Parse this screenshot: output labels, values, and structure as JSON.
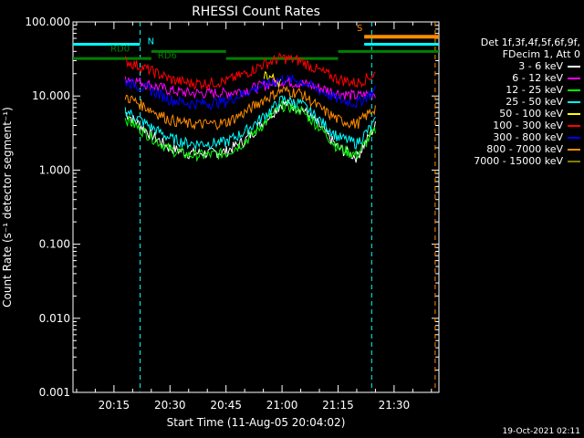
{
  "chart_data": {
    "type": "line",
    "title": "RHESSI Count Rates",
    "xlabel": "Start Time (11-Aug-05 20:04:02)",
    "ylabel": "Count Rate (s⁻¹ detector segment⁻¹)",
    "y_scale": "log",
    "ylim": [
      0.001,
      100
    ],
    "xlim": [
      "20:04:02",
      "21:42"
    ],
    "x_ticks": [
      "20:15",
      "20:30",
      "20:45",
      "21:00",
      "21:15",
      "21:30"
    ],
    "y_ticks": [
      "0.001",
      "0.010",
      "0.100",
      "1.000",
      "10.000",
      "100.000"
    ],
    "grid": false,
    "legend_position": "right",
    "x": [
      "20:18",
      "20:25",
      "20:30",
      "20:35",
      "20:40",
      "20:45",
      "20:50",
      "20:55",
      "21:00",
      "21:05",
      "21:10",
      "21:15",
      "21:20",
      "21:25"
    ],
    "series": [
      {
        "name": "3 - 6 keV",
        "color": "#ffffff",
        "values": [
          6.0,
          3.0,
          2.0,
          1.7,
          1.7,
          1.8,
          2.5,
          4.5,
          8.0,
          7.0,
          4.0,
          2.0,
          1.5,
          4.0
        ]
      },
      {
        "name": "6 - 12 keV",
        "color": "#ff00ff",
        "values": [
          18,
          14,
          12,
          11,
          11,
          11,
          12,
          14,
          16,
          15,
          13,
          11,
          10,
          11
        ]
      },
      {
        "name": "12 - 25 keV",
        "color": "#00ff00",
        "values": [
          5.0,
          2.8,
          1.9,
          1.6,
          1.6,
          1.7,
          2.4,
          4.2,
          7.5,
          6.5,
          3.8,
          2.0,
          1.6,
          3.5
        ]
      },
      {
        "name": "25 - 50 keV",
        "color": "#00ffff",
        "values": [
          6.5,
          3.8,
          2.7,
          2.3,
          2.3,
          2.4,
          3.3,
          5.3,
          9.0,
          8.0,
          4.8,
          2.8,
          2.3,
          4.5
        ]
      },
      {
        "name": "50 - 100 keV",
        "color": "#ffff00",
        "values": [
          null,
          null,
          null,
          null,
          null,
          null,
          null,
          20,
          15,
          null,
          null,
          null,
          null,
          null
        ]
      },
      {
        "name": "100 - 300 keV",
        "color": "#ff0000",
        "values": [
          30,
          22,
          17,
          15,
          15,
          16,
          20,
          27,
          33,
          30,
          22,
          17,
          15,
          20
        ]
      },
      {
        "name": "300 - 800 keV",
        "color": "#0000ff",
        "values": [
          16,
          12,
          9.0,
          8.0,
          8.0,
          8.5,
          11,
          14,
          17,
          16,
          12,
          9.0,
          8.0,
          12
        ]
      },
      {
        "name": "800 - 7000 keV",
        "color": "#ff8c00",
        "values": [
          10,
          6.5,
          4.8,
          4.2,
          4.2,
          4.4,
          6.0,
          9.0,
          12,
          11,
          7.0,
          4.8,
          4.2,
          7.0
        ]
      },
      {
        "name": "7000 - 15000 keV",
        "color": "#808000",
        "values": [
          null,
          null,
          null,
          null,
          null,
          null,
          null,
          null,
          null,
          null,
          null,
          null,
          null,
          null
        ]
      }
    ],
    "legend_header": [
      "Det 1f,3f,4f,5f,6f,9f,",
      "FDecim 1, Att 0"
    ],
    "annotations": {
      "markers": [
        {
          "label": "N",
          "color": "#00ffff",
          "x": "20:23"
        },
        {
          "label": "RD0",
          "color": "#008000",
          "x": "20:18"
        },
        {
          "label": "RD6",
          "color": "#008000",
          "x": "20:26"
        },
        {
          "label": "S",
          "color": "#ff8c00",
          "x": "21:21"
        }
      ],
      "night_bars": [
        {
          "color": "#00ffff",
          "from": "20:04:02",
          "to": "20:22",
          "level": 50
        },
        {
          "color": "#00ffff",
          "from": "21:22",
          "to": "21:42",
          "level": 50
        }
      ],
      "decimation_bars": [
        {
          "color": "#008000",
          "from": "20:04:02",
          "to": "20:25",
          "level": 32
        },
        {
          "color": "#008000",
          "from": "20:25",
          "to": "20:45",
          "level": 40
        },
        {
          "color": "#008000",
          "from": "20:45",
          "to": "21:15",
          "level": 32
        },
        {
          "color": "#008000",
          "from": "21:15",
          "to": "21:42",
          "level": 40
        }
      ],
      "saa_bar": {
        "color": "#ff8c00",
        "from": "21:22",
        "to": "21:42",
        "level": 63
      },
      "dashed_lines": [
        {
          "color": "#00ffff",
          "x": "20:22"
        },
        {
          "color": "#00ffff",
          "x": "21:24"
        },
        {
          "color": "#ff8c00",
          "x": "21:41"
        }
      ]
    }
  },
  "footer": {
    "timestamp": "19-Oct-2021 02:11"
  }
}
